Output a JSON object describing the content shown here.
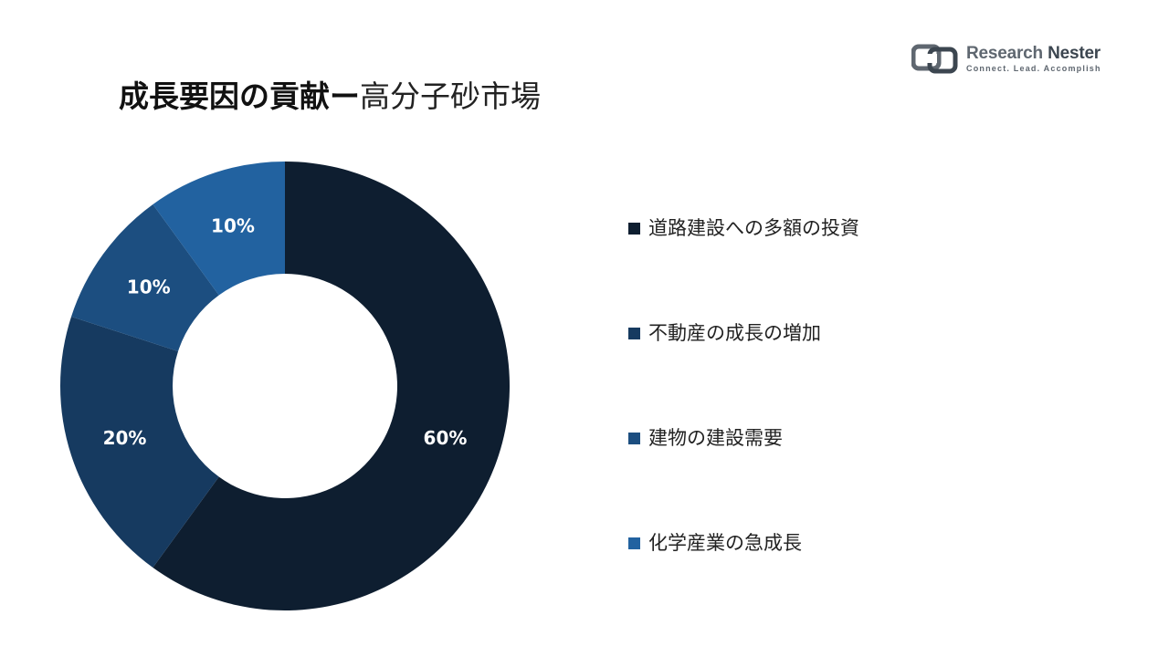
{
  "title": {
    "bold_part": "成長要因の貢献ー",
    "light_part": "高分子砂市場"
  },
  "logo": {
    "name_part1": "Research",
    "name_part2": "Nester",
    "tagline": "Connect. Lead. Accomplish"
  },
  "chart_data": {
    "type": "pie",
    "donut": true,
    "categories": [
      "道路建設への多額の投資",
      "不動産の成長の増加",
      "建物の建設需要",
      "化学産業の急成長"
    ],
    "values": [
      60,
      20,
      10,
      10
    ],
    "labels": [
      "60%",
      "20%",
      "10%",
      "10%"
    ],
    "colors": [
      "#0e1e30",
      "#163a60",
      "#1c4e80",
      "#2262a0"
    ],
    "legend_position": "right"
  }
}
